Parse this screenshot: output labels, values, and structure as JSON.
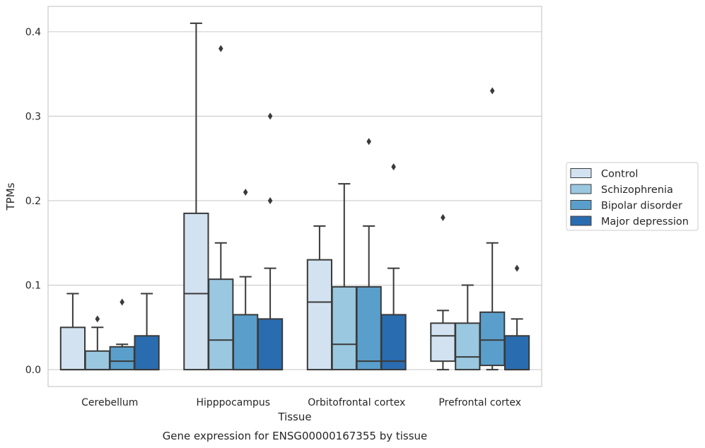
{
  "caption": "Gene expression for ENSG00000167355 by tissue",
  "chart_data": {
    "type": "boxplot",
    "xlabel": "Tissue",
    "ylabel": "TPMs",
    "ylim": [
      -0.02,
      0.43
    ],
    "yticks": [
      "0.0",
      "0.1",
      "0.2",
      "0.3",
      "0.4"
    ],
    "grid": "horizontal",
    "legend_position": "right",
    "categories": [
      "Cerebellum",
      "Hipppocampus",
      "Orbitofrontal cortex",
      "Prefrontal cortex"
    ],
    "series": [
      {
        "name": "Control",
        "color": "#d2e2f1",
        "boxes": [
          {
            "whislo": 0.0,
            "q1": 0.0,
            "med": 0.0,
            "q3": 0.05,
            "whishi": 0.09,
            "fliers": []
          },
          {
            "whislo": 0.0,
            "q1": 0.0,
            "med": 0.09,
            "q3": 0.185,
            "whishi": 0.41,
            "fliers": []
          },
          {
            "whislo": 0.0,
            "q1": 0.0,
            "med": 0.08,
            "q3": 0.13,
            "whishi": 0.17,
            "fliers": []
          },
          {
            "whislo": 0.0,
            "q1": 0.01,
            "med": 0.04,
            "q3": 0.055,
            "whishi": 0.07,
            "fliers": [
              0.18
            ]
          }
        ]
      },
      {
        "name": "Schizophrenia",
        "color": "#9ac8e0",
        "boxes": [
          {
            "whislo": 0.0,
            "q1": 0.0,
            "med": 0.0,
            "q3": 0.022,
            "whishi": 0.05,
            "fliers": [
              0.06
            ]
          },
          {
            "whislo": 0.0,
            "q1": 0.0,
            "med": 0.035,
            "q3": 0.107,
            "whishi": 0.15,
            "fliers": [
              0.38
            ]
          },
          {
            "whislo": 0.0,
            "q1": 0.0,
            "med": 0.03,
            "q3": 0.098,
            "whishi": 0.22,
            "fliers": []
          },
          {
            "whislo": 0.0,
            "q1": 0.0,
            "med": 0.015,
            "q3": 0.055,
            "whishi": 0.1,
            "fliers": []
          }
        ]
      },
      {
        "name": "Bipolar disorder",
        "color": "#5a9fcb",
        "boxes": [
          {
            "whislo": 0.0,
            "q1": 0.0,
            "med": 0.01,
            "q3": 0.027,
            "whishi": 0.03,
            "fliers": [
              0.08
            ]
          },
          {
            "whislo": 0.0,
            "q1": 0.0,
            "med": 0.0,
            "q3": 0.065,
            "whishi": 0.11,
            "fliers": [
              0.21
            ]
          },
          {
            "whislo": 0.0,
            "q1": 0.0,
            "med": 0.01,
            "q3": 0.098,
            "whishi": 0.17,
            "fliers": [
              0.27
            ]
          },
          {
            "whislo": 0.0,
            "q1": 0.005,
            "med": 0.035,
            "q3": 0.068,
            "whishi": 0.15,
            "fliers": [
              0.33
            ]
          }
        ]
      },
      {
        "name": "Major depression",
        "color": "#2a6cb0",
        "boxes": [
          {
            "whislo": 0.0,
            "q1": 0.0,
            "med": 0.0,
            "q3": 0.04,
            "whishi": 0.09,
            "fliers": []
          },
          {
            "whislo": 0.0,
            "q1": 0.0,
            "med": 0.0,
            "q3": 0.06,
            "whishi": 0.12,
            "fliers": [
              0.3,
              0.2
            ]
          },
          {
            "whislo": 0.0,
            "q1": 0.0,
            "med": 0.01,
            "q3": 0.065,
            "whishi": 0.12,
            "fliers": [
              0.24
            ]
          },
          {
            "whislo": 0.0,
            "q1": 0.0,
            "med": 0.0,
            "q3": 0.04,
            "whishi": 0.06,
            "fliers": [
              0.12
            ]
          }
        ]
      }
    ]
  }
}
